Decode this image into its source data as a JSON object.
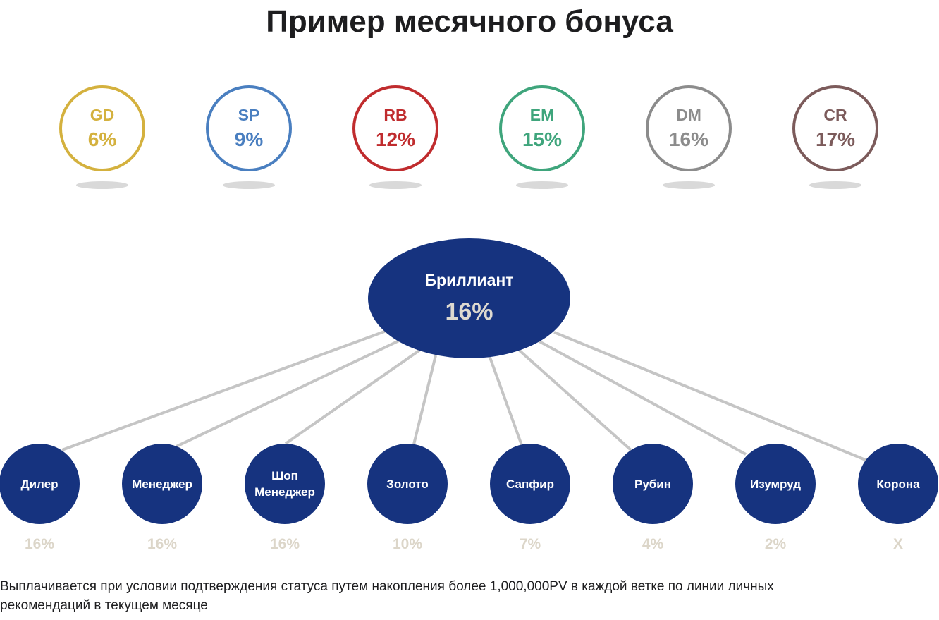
{
  "title": "Пример месячного бонуса",
  "levels": [
    {
      "code": "GD",
      "percent": "6%",
      "color": "#d4b13e"
    },
    {
      "code": "SP",
      "percent": "9%",
      "color": "#4a7fc0"
    },
    {
      "code": "RB",
      "percent": "12%",
      "color": "#c02c2e"
    },
    {
      "code": "EM",
      "percent": "15%",
      "color": "#3fa57c"
    },
    {
      "code": "DM",
      "percent": "16%",
      "color": "#8c8c8c"
    },
    {
      "code": "CR",
      "percent": "17%",
      "color": "#7c5b5b"
    }
  ],
  "root": {
    "name": "Бриллиант",
    "percent": "16%",
    "color": "#16337f"
  },
  "ranks": [
    {
      "name": "Дилер",
      "percent": "16%"
    },
    {
      "name": "Менеджер",
      "percent": "16%"
    },
    {
      "name": "Шоп\nМенеджер",
      "percent": "16%"
    },
    {
      "name": "Золото",
      "percent": "10%"
    },
    {
      "name": "Сапфир",
      "percent": "7%"
    },
    {
      "name": "Рубин",
      "percent": "4%"
    },
    {
      "name": "Изумруд",
      "percent": "2%"
    },
    {
      "name": "Корона",
      "percent": "X"
    }
  ],
  "footnote": "Выплачивается при условии подтверждения статуса путем накопления более 1,000,000PV в каждой ветке по линии личных рекомендаций в текущем месяце"
}
